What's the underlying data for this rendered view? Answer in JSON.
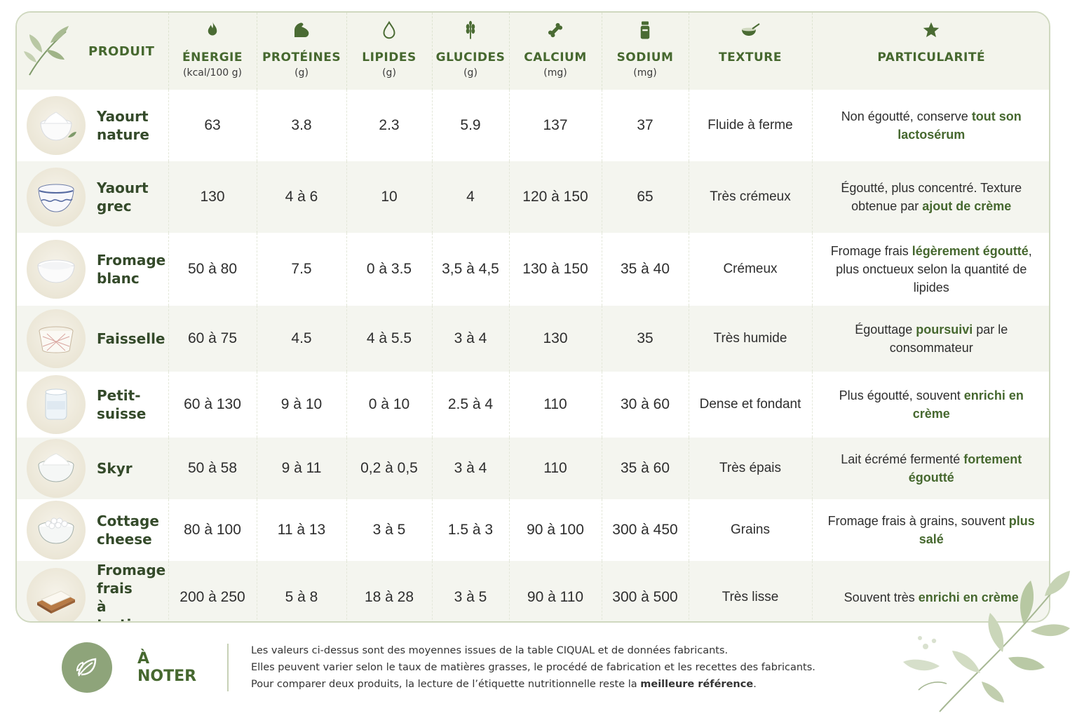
{
  "header": {
    "produit": "PRODUIT",
    "energie": {
      "label": "ÉNERGIE",
      "unit": "(kcal/100 g)"
    },
    "proteines": {
      "label": "PROTÉINES",
      "unit": "(g)"
    },
    "lipides": {
      "label": "LIPIDES",
      "unit": "(g)"
    },
    "glucides": {
      "label": "GLUCIDES",
      "unit": "(g)"
    },
    "calcium": {
      "label": "CALCIUM",
      "unit": "(mg)"
    },
    "sodium": {
      "label": "SODIUM",
      "unit": "(mg)"
    },
    "texture": {
      "label": "TEXTURE"
    },
    "particularite": {
      "label": "PARTICULARITÉ"
    }
  },
  "rows": [
    {
      "name": "Yaourt\nnature",
      "energie": "63",
      "proteines": "3.8",
      "lipides": "2.3",
      "glucides": "5.9",
      "calcium": "137",
      "sodium": "37",
      "texture": "Fluide à ferme",
      "part": [
        {
          "t": "Non égoutté, conserve "
        },
        {
          "t": "tout son lactosérum",
          "hl": true
        }
      ]
    },
    {
      "name": "Yaourt\ngrec",
      "energie": "130",
      "proteines": "4 à 6",
      "lipides": "10",
      "glucides": "4",
      "calcium": "120 à 150",
      "sodium": "65",
      "texture": "Très crémeux",
      "part": [
        {
          "t": "Égoutté, plus concentré. Texture obtenue par "
        },
        {
          "t": "ajout de crème",
          "hl": true
        }
      ]
    },
    {
      "name": "Fromage\nblanc",
      "energie": "50 à 80",
      "proteines": "7.5",
      "lipides": "0 à 3.5",
      "glucides": "3,5 à 4,5",
      "calcium": "130 à 150",
      "sodium": "35 à 40",
      "texture": "Crémeux",
      "part": [
        {
          "t": "Fromage frais "
        },
        {
          "t": "légèrement égoutté",
          "hl": true
        },
        {
          "t": ", plus onctueux selon la quantité de lipides"
        }
      ]
    },
    {
      "name": "Faisselle",
      "energie": "60 à 75",
      "proteines": "4.5",
      "lipides": "4 à 5.5",
      "glucides": "3 à 4",
      "calcium": "130",
      "sodium": "35",
      "texture": "Très humide",
      "part": [
        {
          "t": "Égouttage "
        },
        {
          "t": "poursuivi",
          "hl": true
        },
        {
          "t": " par le consommateur"
        }
      ]
    },
    {
      "name": "Petit-\nsuisse",
      "energie": "60 à 130",
      "proteines": "9 à 10",
      "lipides": "0 à 10",
      "glucides": "2.5 à 4",
      "calcium": "110",
      "sodium": "30 à 60",
      "texture": "Dense et fondant",
      "part": [
        {
          "t": "Plus égoutté, souvent "
        },
        {
          "t": "enrichi en crème",
          "hl": true
        }
      ]
    },
    {
      "name": "Skyr",
      "energie": "50 à 58",
      "proteines": "9 à 11",
      "lipides": "0,2 à 0,5",
      "glucides": "3 à 4",
      "calcium": "110",
      "sodium": "35 à 60",
      "texture": "Très épais",
      "part": [
        {
          "t": "Lait écrémé fermenté "
        },
        {
          "t": "fortement égoutté",
          "hl": true
        }
      ]
    },
    {
      "name": "Cottage\ncheese",
      "energie": "80 à 100",
      "proteines": "11 à 13",
      "lipides": "3 à 5",
      "glucides": "1.5 à 3",
      "calcium": "90 à 100",
      "sodium": "300 à 450",
      "texture": "Grains",
      "part": [
        {
          "t": "Fromage frais à grains, souvent "
        },
        {
          "t": "plus salé",
          "hl": true
        }
      ]
    },
    {
      "name": "Fromage\nfrais\nà tartiner",
      "energie": "200 à 250",
      "proteines": "5 à 8",
      "lipides": "18 à 28",
      "glucides": "3 à 5",
      "calcium": "90 à 110",
      "sodium": "300 à 500",
      "texture": "Très lisse",
      "part": [
        {
          "t": "Souvent très "
        },
        {
          "t": "enrichi en crème",
          "hl": true
        }
      ]
    }
  ],
  "icons": {
    "energie": "flame-icon",
    "proteines": "muscle-arm-icon",
    "lipides": "drop-icon",
    "glucides": "wheat-icon",
    "calcium": "bone-icon",
    "sodium": "salt-shaker-icon",
    "texture": "bowl-whisk-icon",
    "particularite": "star-icon",
    "note": "leaf-icon"
  },
  "colors": {
    "accent": "#46682f",
    "header_bg": "#f3f4ec",
    "badge": "#8ea47a",
    "border": "#cfd8bf"
  },
  "note": {
    "title": "À NOTER",
    "line1": "Les valeurs ci-dessus sont des moyennes issues de la table CIQUAL et de données fabricants.",
    "line2": "Elles peuvent varier selon le taux de matières grasses, le procédé de fabrication et les recettes des fabricants.",
    "line3_pre": "Pour comparer deux produits, la lecture de l’étiquette nutritionnelle reste la ",
    "line3_bold": "meilleure référence",
    "line3_post": "."
  }
}
